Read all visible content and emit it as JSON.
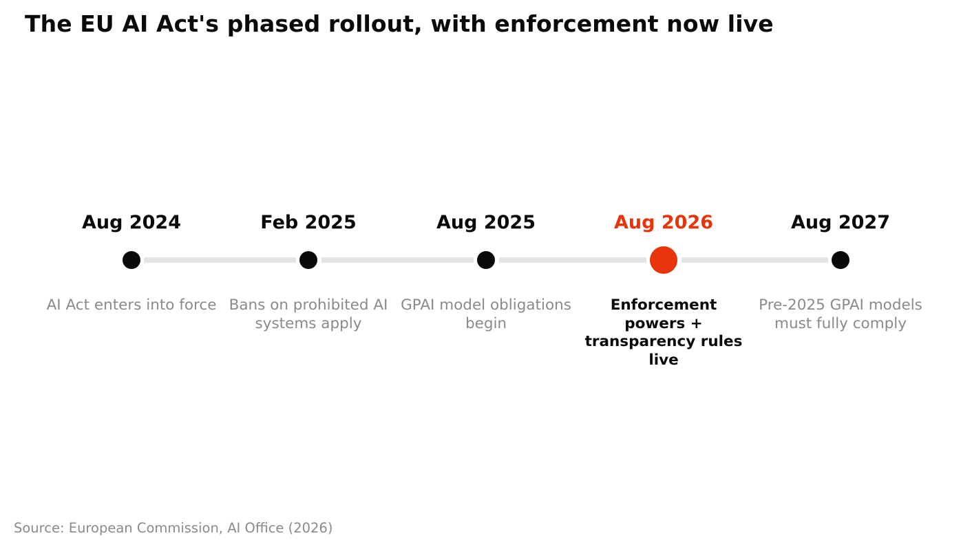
{
  "title": "The EU AI Act's phased rollout, with enforcement now live",
  "milestones": [
    {
      "date": "Aug 2024",
      "description": "AI Act enters into force",
      "current": false
    },
    {
      "date": "Feb 2025",
      "description": "Bans on prohibited AI systems apply",
      "current": false
    },
    {
      "date": "Aug 2025",
      "description": "GPAI model obligations begin",
      "current": false
    },
    {
      "date": "Aug 2026",
      "description": "Enforcement powers + transparency rules live",
      "current": true
    },
    {
      "date": "Aug 2027",
      "description": "Pre-2025 GPAI models must fully comply",
      "current": false
    }
  ],
  "source": "Source: European Commission, AI Office (2026)",
  "colors": {
    "highlight": "#e8340b",
    "milestone_dot": "#0a0a0a",
    "connector": "#e5e5e5",
    "muted_text": "#8a8a8a"
  }
}
